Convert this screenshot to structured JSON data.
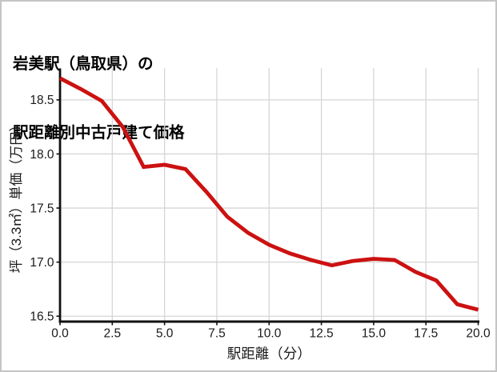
{
  "page": {
    "background": "#ffffff",
    "border_color": "#c5c5c5"
  },
  "header": {
    "title_line1": "岩美駅（鳥取県）の",
    "title_line2": "駅距離別中古戸建て価格"
  },
  "chart_data": {
    "type": "line",
    "title": "岩美駅（鳥取県）の駅距離別中古戸建て価格",
    "xlabel": "駅距離（分）",
    "ylabel": "坪（3.3㎡）単価（万円）",
    "x": [
      0,
      1,
      2,
      3,
      4,
      5,
      6,
      7,
      8,
      9,
      10,
      11,
      12,
      13,
      14,
      15,
      16,
      17,
      18,
      19,
      20
    ],
    "series": [
      {
        "name": "中古戸建て価格",
        "values": [
          18.7,
          18.6,
          18.49,
          18.25,
          17.88,
          17.9,
          17.86,
          17.65,
          17.42,
          17.27,
          17.16,
          17.08,
          17.02,
          16.97,
          17.01,
          17.03,
          17.02,
          16.91,
          16.83,
          16.61,
          16.56
        ]
      }
    ],
    "xlim": [
      0,
      20
    ],
    "ylim": [
      16.45,
      18.78
    ],
    "xticks": [
      0,
      2.5,
      5,
      7.5,
      10,
      12.5,
      15,
      17.5,
      20
    ],
    "xtick_labels": [
      "0.0",
      "2.5",
      "5.0",
      "7.5",
      "10.0",
      "12.5",
      "15.0",
      "17.5",
      "20.0"
    ],
    "yticks": [
      16.5,
      17.0,
      17.5,
      18.0,
      18.5
    ],
    "ytick_labels": [
      "16.5",
      "17.0",
      "17.5",
      "18.0",
      "18.5"
    ],
    "grid": true,
    "legend_position": "none",
    "colors": {
      "line": "#cc1111",
      "grid": "#d6d6d6",
      "spine": "#111111",
      "tick_text": "#1a1a1a",
      "axis_label_text": "#1a1a1a"
    }
  }
}
